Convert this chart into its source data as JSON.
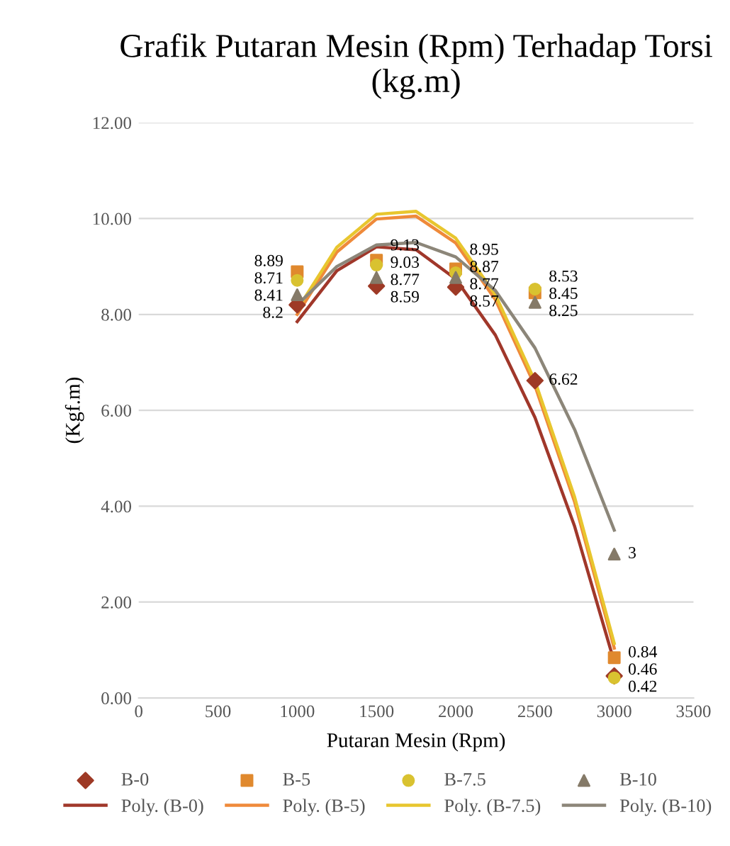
{
  "chart_data": {
    "type": "scatter",
    "title": "Grafik Putaran Mesin (Rpm) Terhadap Torsi (kg.m)",
    "xlabel": "Putaran Mesin (Rpm)",
    "ylabel": "(Kgf.m)",
    "xlim": [
      0,
      3500
    ],
    "xticks": [
      0,
      500,
      1000,
      1500,
      2000,
      2500,
      3000,
      3500
    ],
    "ylim": [
      0,
      12
    ],
    "yticks": [
      {
        "value": 0,
        "label": "0.00"
      },
      {
        "value": 2,
        "label": "2.00"
      },
      {
        "value": 4,
        "label": "4.00"
      },
      {
        "value": 6,
        "label": "6.00"
      },
      {
        "value": 8,
        "label": "8.00"
      },
      {
        "value": 10,
        "label": "10.00"
      },
      {
        "value": 12,
        "label": "12.00"
      }
    ],
    "grid": "y",
    "legend": "bottom",
    "series": [
      {
        "name": "B-0",
        "type": "scatter",
        "marker": "diamond",
        "color": "#9e3a26",
        "x": [
          1000,
          1500,
          2000,
          2500,
          3000
        ],
        "values": [
          8.2,
          8.59,
          8.57,
          6.62,
          0.46
        ],
        "value_labels": [
          "8.2",
          "8.59",
          "8.57",
          "6.62",
          "0.46"
        ]
      },
      {
        "name": "B-5",
        "type": "scatter",
        "marker": "square",
        "color": "#e0892e",
        "x": [
          1000,
          1500,
          2000,
          2500,
          3000
        ],
        "values": [
          8.89,
          9.13,
          8.95,
          8.45,
          0.84
        ],
        "value_labels": [
          "8.89",
          "9.13",
          "8.95",
          "8.45",
          "0.84"
        ]
      },
      {
        "name": "B-7.5",
        "type": "scatter",
        "marker": "circle",
        "color": "#d9c230",
        "x": [
          1000,
          1500,
          2000,
          2500,
          3000
        ],
        "values": [
          8.71,
          9.03,
          8.87,
          8.53,
          0.42
        ],
        "value_labels": [
          "8.71",
          "9.03",
          "8.87",
          "8.53",
          "0.42"
        ]
      },
      {
        "name": "B-10",
        "type": "scatter",
        "marker": "triangle",
        "color": "#857a68",
        "x": [
          1000,
          1500,
          2000,
          2500,
          3000
        ],
        "values": [
          8.41,
          8.77,
          8.77,
          8.25,
          3
        ],
        "value_labels": [
          "8.41",
          "8.77",
          "8.77",
          "8.25",
          "3"
        ]
      },
      {
        "name": "Poly. (B-0)",
        "type": "line",
        "color": "#a0372a",
        "x": [
          1000,
          1250,
          1500,
          1750,
          2000,
          2250,
          2500,
          2750,
          3000
        ],
        "values": [
          7.85,
          8.91,
          9.41,
          9.35,
          8.74,
          7.57,
          5.85,
          3.58,
          0.75
        ]
      },
      {
        "name": "Poly. (B-5)",
        "type": "line",
        "color": "#ef8a3a",
        "x": [
          1000,
          1250,
          1500,
          1750,
          2000,
          2250,
          2500,
          2750,
          3000
        ],
        "values": [
          8.0,
          9.3,
          9.99,
          10.05,
          9.49,
          8.31,
          6.51,
          4.09,
          1.04
        ]
      },
      {
        "name": "Poly. (B-7.5)",
        "type": "line",
        "color": "#e8c62e",
        "x": [
          1000,
          1250,
          1500,
          1750,
          2000,
          2250,
          2500,
          2750,
          3000
        ],
        "values": [
          8.1,
          9.4,
          10.09,
          10.15,
          9.59,
          8.41,
          6.61,
          4.19,
          1.14
        ]
      },
      {
        "name": "Poly. (B-10)",
        "type": "line",
        "color": "#8c8679",
        "x": [
          1000,
          1250,
          1500,
          1750,
          2000,
          2250,
          2500,
          2750,
          3000
        ],
        "values": [
          8.2,
          9.0,
          9.45,
          9.5,
          9.2,
          8.5,
          7.3,
          5.6,
          3.5
        ]
      }
    ]
  }
}
